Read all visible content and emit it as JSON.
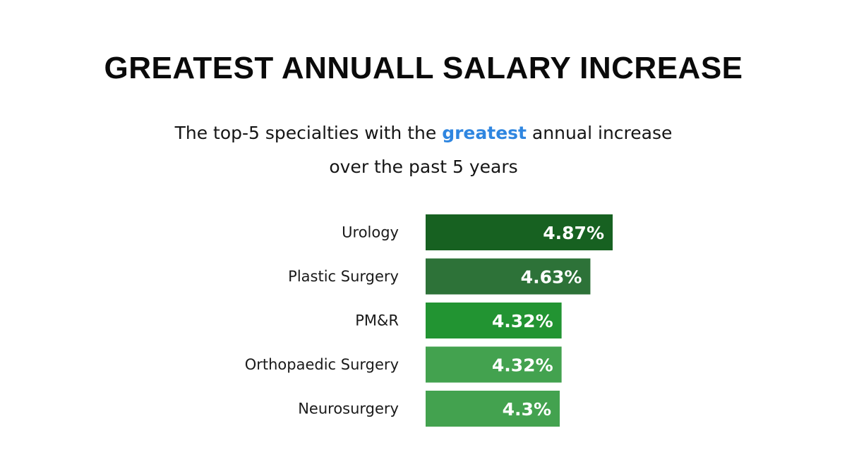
{
  "header": {
    "title": "GREATEST ANNUALL SALARY INCREASE",
    "subtitle_line1_before": "The top-5 specialties with the ",
    "subtitle_line1_highlight": "greatest",
    "subtitle_line1_after": " annual increase",
    "subtitle_line2": "over the past 5 years"
  },
  "colors": {
    "highlight": "#2f86e0",
    "bars": [
      "#176121",
      "#2d7238",
      "#229432",
      "#43a24f",
      "#43a24f"
    ]
  },
  "chart_data": {
    "type": "bar",
    "orientation": "horizontal",
    "categories": [
      "Urology",
      "Plastic Surgery",
      "PM&R",
      "Orthopaedic Surgery",
      "Neurosurgery"
    ],
    "values": [
      4.87,
      4.63,
      4.32,
      4.32,
      4.3
    ],
    "value_labels": [
      "4.87%",
      "4.63%",
      "4.32%",
      "4.32%",
      "4.3%"
    ],
    "title": "GREATEST ANNUALL SALARY INCREASE",
    "xlabel": "",
    "ylabel": "",
    "grid": false,
    "legend": "none"
  }
}
